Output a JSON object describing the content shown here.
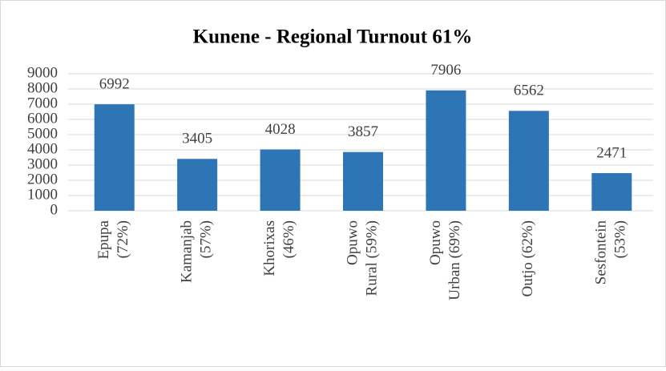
{
  "chart_data": {
    "type": "bar",
    "title": "Kunene - Regional Turnout 61%",
    "categories": [
      [
        "Epupa",
        "(72%)"
      ],
      [
        "Kamanjab",
        "(57%)"
      ],
      [
        "Khorixas",
        "(46%)"
      ],
      [
        "Opuwo",
        "Rural (59%)"
      ],
      [
        "Opuwo",
        "Urban (69%)"
      ],
      [
        "Outjo (62%)"
      ],
      [
        "Sesfontein",
        "(53%)"
      ]
    ],
    "values": [
      6992,
      3405,
      4028,
      3857,
      7906,
      6562,
      2471
    ],
    "color": "#2e75b6",
    "ylim": [
      0,
      9000
    ],
    "yticks": [
      0,
      1000,
      2000,
      3000,
      4000,
      5000,
      6000,
      7000,
      8000,
      9000
    ],
    "grid": true
  }
}
